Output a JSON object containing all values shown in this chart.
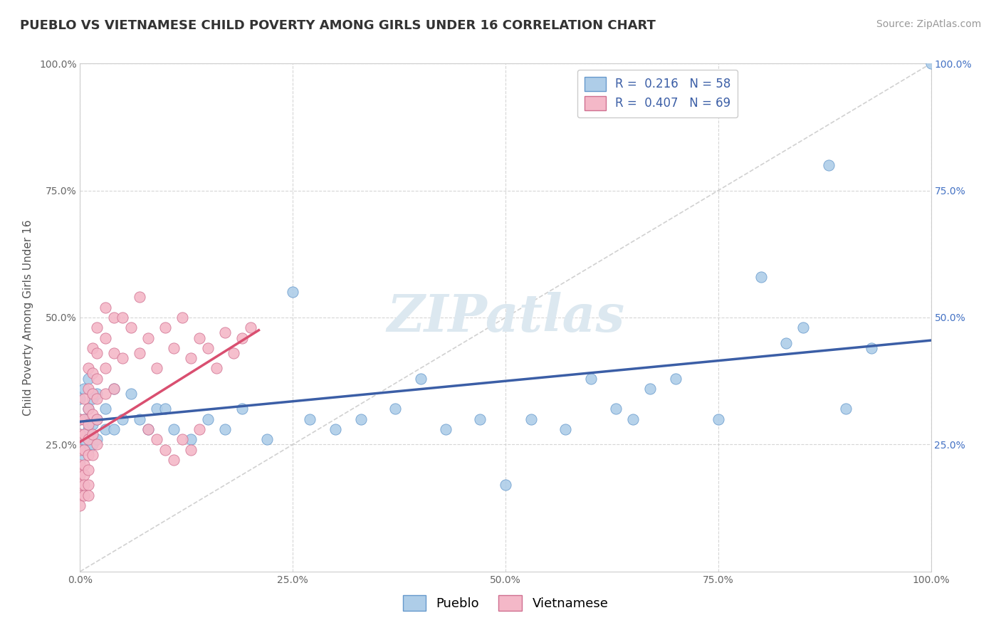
{
  "title": "PUEBLO VS VIETNAMESE CHILD POVERTY AMONG GIRLS UNDER 16 CORRELATION CHART",
  "source": "Source: ZipAtlas.com",
  "ylabel": "Child Poverty Among Girls Under 16",
  "xlim": [
    0,
    1
  ],
  "ylim": [
    0,
    1
  ],
  "xtick_labels": [
    "0.0%",
    "",
    "",
    "",
    "",
    "25.0%",
    "",
    "",
    "",
    "",
    "50.0%",
    "",
    "",
    "",
    "",
    "75.0%",
    "",
    "",
    "",
    "",
    "100.0%"
  ],
  "xtick_vals": [
    0,
    0.05,
    0.1,
    0.15,
    0.2,
    0.25,
    0.3,
    0.35,
    0.4,
    0.45,
    0.5,
    0.55,
    0.6,
    0.65,
    0.7,
    0.75,
    0.8,
    0.85,
    0.9,
    0.95,
    1.0
  ],
  "xmajor_ticks": [
    0,
    0.25,
    0.5,
    0.75,
    1.0
  ],
  "xmajor_labels": [
    "0.0%",
    "25.0%",
    "50.0%",
    "75.0%",
    "100.0%"
  ],
  "ytick_vals": [
    0.25,
    0.5,
    0.75,
    1.0
  ],
  "ytick_labels": [
    "25.0%",
    "50.0%",
    "75.0%",
    "100.0%"
  ],
  "right_ytick_vals": [
    0.25,
    0.5,
    0.75,
    1.0
  ],
  "right_ytick_labels": [
    "25.0%",
    "50.0%",
    "75.0%",
    "100.0%"
  ],
  "pueblo_R": 0.216,
  "pueblo_N": 58,
  "vietnamese_R": 0.407,
  "vietnamese_N": 69,
  "pueblo_color": "#aecde8",
  "pueblo_edge_color": "#6699cc",
  "vietnamese_color": "#f4b8c8",
  "vietnamese_edge_color": "#d07090",
  "trendline_pueblo_color": "#3b5ea6",
  "trendline_vietnamese_color": "#d94f70",
  "diagonal_color": "#cccccc",
  "background_color": "#ffffff",
  "watermark": "ZIPatlas",
  "watermark_color": "#dce8f0",
  "watermark_fontsize": 52,
  "title_fontsize": 13,
  "axis_label_fontsize": 11,
  "tick_fontsize": 10,
  "source_fontsize": 10,
  "title_color": "#333333",
  "right_axis_label_color": "#4472c4",
  "pueblo_trend_x": [
    0.0,
    1.0
  ],
  "pueblo_trend_y": [
    0.295,
    0.455
  ],
  "vietnamese_trend_x": [
    0.0,
    0.21
  ],
  "vietnamese_trend_y": [
    0.255,
    0.475
  ],
  "pueblo_scatter_x": [
    0.0,
    0.0,
    0.0,
    0.0,
    0.0,
    0.005,
    0.005,
    0.005,
    0.01,
    0.01,
    0.01,
    0.01,
    0.015,
    0.015,
    0.015,
    0.02,
    0.02,
    0.02,
    0.03,
    0.03,
    0.04,
    0.04,
    0.05,
    0.06,
    0.07,
    0.08,
    0.09,
    0.1,
    0.11,
    0.13,
    0.15,
    0.17,
    0.19,
    0.22,
    0.25,
    0.27,
    0.3,
    0.33,
    0.37,
    0.4,
    0.43,
    0.47,
    0.5,
    0.53,
    0.57,
    0.6,
    0.63,
    0.65,
    0.67,
    0.7,
    0.75,
    0.8,
    0.83,
    0.85,
    0.88,
    0.9,
    0.93,
    1.0
  ],
  "pueblo_scatter_y": [
    0.34,
    0.3,
    0.27,
    0.24,
    0.22,
    0.36,
    0.3,
    0.26,
    0.38,
    0.32,
    0.28,
    0.24,
    0.34,
    0.29,
    0.25,
    0.35,
    0.3,
    0.26,
    0.32,
    0.28,
    0.36,
    0.28,
    0.3,
    0.35,
    0.3,
    0.28,
    0.32,
    0.32,
    0.28,
    0.26,
    0.3,
    0.28,
    0.32,
    0.26,
    0.55,
    0.3,
    0.28,
    0.3,
    0.32,
    0.38,
    0.28,
    0.3,
    0.17,
    0.3,
    0.28,
    0.38,
    0.32,
    0.3,
    0.36,
    0.38,
    0.3,
    0.58,
    0.45,
    0.48,
    0.8,
    0.32,
    0.44,
    1.0
  ],
  "vietnamese_scatter_x": [
    0.0,
    0.0,
    0.0,
    0.0,
    0.0,
    0.0,
    0.0,
    0.0,
    0.005,
    0.005,
    0.005,
    0.005,
    0.005,
    0.005,
    0.005,
    0.005,
    0.01,
    0.01,
    0.01,
    0.01,
    0.01,
    0.01,
    0.01,
    0.01,
    0.01,
    0.015,
    0.015,
    0.015,
    0.015,
    0.015,
    0.015,
    0.02,
    0.02,
    0.02,
    0.02,
    0.02,
    0.02,
    0.03,
    0.03,
    0.03,
    0.03,
    0.04,
    0.04,
    0.04,
    0.05,
    0.05,
    0.06,
    0.07,
    0.07,
    0.08,
    0.09,
    0.1,
    0.11,
    0.12,
    0.13,
    0.14,
    0.15,
    0.16,
    0.17,
    0.18,
    0.19,
    0.2,
    0.08,
    0.09,
    0.1,
    0.11,
    0.12,
    0.13,
    0.14
  ],
  "vietnamese_scatter_y": [
    0.3,
    0.27,
    0.24,
    0.21,
    0.19,
    0.17,
    0.15,
    0.13,
    0.34,
    0.3,
    0.27,
    0.24,
    0.21,
    0.19,
    0.17,
    0.15,
    0.4,
    0.36,
    0.32,
    0.29,
    0.26,
    0.23,
    0.2,
    0.17,
    0.15,
    0.44,
    0.39,
    0.35,
    0.31,
    0.27,
    0.23,
    0.48,
    0.43,
    0.38,
    0.34,
    0.3,
    0.25,
    0.52,
    0.46,
    0.4,
    0.35,
    0.5,
    0.43,
    0.36,
    0.5,
    0.42,
    0.48,
    0.54,
    0.43,
    0.46,
    0.4,
    0.48,
    0.44,
    0.5,
    0.42,
    0.46,
    0.44,
    0.4,
    0.47,
    0.43,
    0.46,
    0.48,
    0.28,
    0.26,
    0.24,
    0.22,
    0.26,
    0.24,
    0.28
  ]
}
